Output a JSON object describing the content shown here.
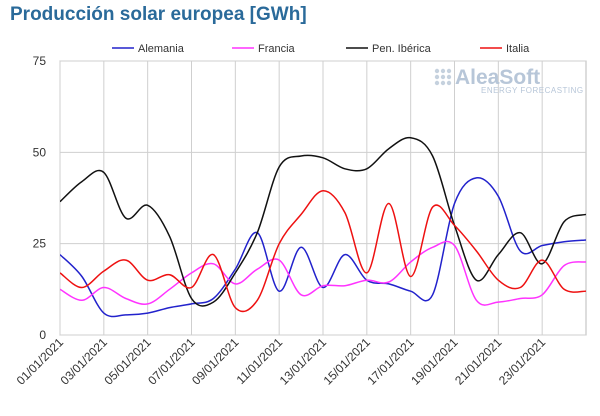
{
  "chart_data": {
    "type": "line",
    "title": "Producción solar europea [GWh]",
    "ylim": [
      0,
      75
    ],
    "yticks": [
      0,
      25,
      50,
      75
    ],
    "xlim": [
      1,
      25
    ],
    "xtick_days": [
      1,
      3,
      5,
      7,
      9,
      11,
      13,
      15,
      17,
      19,
      21,
      23
    ],
    "xticks": [
      "01/01/2021",
      "03/01/2021",
      "05/01/2021",
      "07/01/2021",
      "09/01/2021",
      "11/01/2021",
      "13/01/2021",
      "15/01/2021",
      "17/01/2021",
      "19/01/2021",
      "21/01/2021",
      "23/01/2021"
    ],
    "grid": true,
    "legend_position": "top",
    "x": [
      1,
      2,
      3,
      4,
      5,
      6,
      7,
      8,
      9,
      10,
      11,
      12,
      13,
      14,
      15,
      16,
      17,
      18,
      19,
      20,
      21,
      22,
      23,
      24,
      25
    ],
    "series": [
      {
        "name": "Alemania",
        "color": "#2222cc",
        "values": [
          22,
          16,
          6,
          5.5,
          6,
          7.5,
          8.5,
          10,
          18,
          28,
          12,
          24,
          13,
          22,
          15,
          14,
          12,
          11,
          36,
          43,
          38,
          23,
          24.5,
          25.5,
          26
        ]
      },
      {
        "name": "Francia",
        "color": "#ff33ff",
        "values": [
          12.5,
          9.5,
          13,
          10,
          8.5,
          12.5,
          17,
          19.5,
          14,
          18,
          20.5,
          11,
          13.5,
          13.5,
          15,
          14.5,
          20,
          24,
          24.5,
          9.5,
          9,
          10,
          11,
          19,
          20
        ]
      },
      {
        "name": "Pen. Ibérica",
        "color": "#111111",
        "values": [
          36.5,
          42,
          44.5,
          32,
          35.5,
          27,
          10,
          9,
          17,
          28,
          46,
          49,
          48.5,
          45.5,
          45.5,
          51,
          54,
          49,
          30,
          15,
          22,
          28,
          19.5,
          31,
          33
        ]
      },
      {
        "name": "Italia",
        "color": "#ee1111",
        "values": [
          17,
          13,
          17.5,
          20.5,
          15,
          16.5,
          13,
          22,
          7.5,
          9.5,
          25,
          33,
          39.5,
          33.5,
          17,
          36,
          16,
          35,
          30,
          23,
          15,
          13,
          20.5,
          12.5,
          12
        ]
      }
    ]
  },
  "logo": {
    "main": "AleaSoft",
    "sub": "ENERGY FORECASTING"
  }
}
